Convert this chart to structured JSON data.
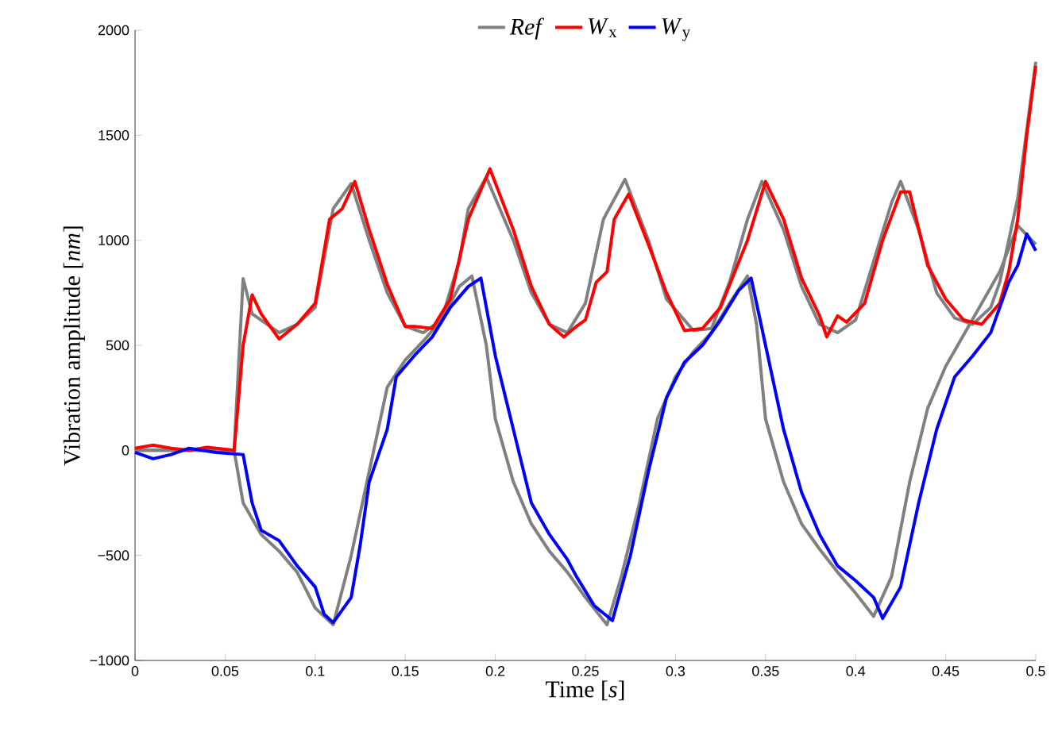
{
  "chart_data": {
    "type": "line",
    "xlabel": "Time [*s*]",
    "ylabel": "Vibration amplitude [*nm*]",
    "xlim": [
      0,
      0.5
    ],
    "ylim": [
      -1000,
      2000
    ],
    "xticks": [
      0,
      0.05,
      0.1,
      0.15,
      0.2,
      0.25,
      0.3,
      0.35,
      0.4,
      0.45,
      0.5
    ],
    "yticks": [
      {
        "value": -1000,
        "label": "−1000"
      },
      {
        "value": -500,
        "label": "−500"
      },
      0,
      500,
      1000,
      1500,
      2000
    ],
    "legend": "top",
    "grid": false,
    "marker": "none",
    "line_style": "solid",
    "series": [
      {
        "name": "*Ref*",
        "color": "#808080",
        "x": [
          0,
          0.02,
          0.04,
          0.055,
          0.06,
          0.065,
          0.08,
          0.09,
          0.1,
          0.11,
          0.12,
          0.13,
          0.14,
          0.15,
          0.16,
          0.17,
          0.18,
          0.185,
          0.195,
          0.21,
          0.22,
          0.23,
          0.24,
          0.25,
          0.26,
          0.272,
          0.285,
          0.295,
          0.31,
          0.32,
          0.33,
          0.34,
          0.348,
          0.36,
          0.37,
          0.38,
          0.39,
          0.4,
          0.41,
          0.42,
          0.425,
          0.435,
          0.445,
          0.455,
          0.465,
          0.475,
          0.48,
          0.49,
          0.5
        ],
        "values": [
          0,
          0,
          0,
          0,
          817,
          650,
          560,
          600,
          680,
          1150,
          1270,
          1000,
          750,
          590,
          560,
          620,
          900,
          1150,
          1300,
          1000,
          750,
          600,
          560,
          700,
          1100,
          1290,
          1000,
          720,
          570,
          580,
          800,
          1100,
          1280,
          1050,
          780,
          600,
          560,
          620,
          900,
          1180,
          1280,
          1050,
          750,
          630,
          600,
          680,
          800,
          1200,
          1850
        ]
      },
      {
        "color": "#808080",
        "x": [
          0,
          0.02,
          0.04,
          0.055,
          0.06,
          0.07,
          0.08,
          0.09,
          0.1,
          0.11,
          0.12,
          0.13,
          0.14,
          0.15,
          0.16,
          0.17,
          0.18,
          0.187,
          0.195,
          0.2,
          0.21,
          0.22,
          0.23,
          0.24,
          0.25,
          0.262,
          0.27,
          0.28,
          0.29,
          0.3,
          0.31,
          0.32,
          0.33,
          0.34,
          0.345,
          0.35,
          0.36,
          0.37,
          0.38,
          0.39,
          0.4,
          0.41,
          0.42,
          0.43,
          0.44,
          0.45,
          0.46,
          0.47,
          0.48,
          0.49,
          0.5
        ],
        "values": [
          0,
          0,
          0,
          0,
          -250,
          -400,
          -480,
          -580,
          -750,
          -830,
          -500,
          -100,
          300,
          430,
          520,
          620,
          780,
          830,
          500,
          150,
          -150,
          -350,
          -480,
          -580,
          -700,
          -830,
          -600,
          -250,
          150,
          350,
          470,
          560,
          700,
          830,
          600,
          150,
          -150,
          -350,
          -470,
          -580,
          -680,
          -790,
          -600,
          -150,
          200,
          400,
          550,
          700,
          850,
          1070,
          980
        ]
      },
      {
        "name": "*W*$_{x}$",
        "color": "#ff0000",
        "x": [
          0,
          0.01,
          0.02,
          0.03,
          0.04,
          0.055,
          0.06,
          0.065,
          0.07,
          0.08,
          0.09,
          0.1,
          0.108,
          0.115,
          0.122,
          0.13,
          0.14,
          0.15,
          0.155,
          0.165,
          0.175,
          0.185,
          0.197,
          0.21,
          0.22,
          0.23,
          0.238,
          0.245,
          0.25,
          0.256,
          0.262,
          0.266,
          0.274,
          0.285,
          0.295,
          0.305,
          0.315,
          0.325,
          0.34,
          0.35,
          0.36,
          0.37,
          0.38,
          0.384,
          0.39,
          0.395,
          0.405,
          0.415,
          0.425,
          0.43,
          0.44,
          0.45,
          0.46,
          0.47,
          0.48,
          0.485,
          0.49,
          0.495,
          0.5
        ],
        "values": [
          10,
          25,
          10,
          0,
          15,
          0,
          500,
          740,
          650,
          530,
          600,
          700,
          1100,
          1150,
          1280,
          1050,
          790,
          590,
          590,
          580,
          720,
          1100,
          1340,
          1050,
          780,
          600,
          540,
          590,
          620,
          800,
          850,
          1100,
          1220,
          980,
          750,
          570,
          580,
          680,
          1000,
          1280,
          1100,
          820,
          640,
          540,
          640,
          610,
          700,
          1000,
          1230,
          1230,
          880,
          720,
          620,
          600,
          700,
          850,
          1100,
          1500,
          1830
        ]
      },
      {
        "name": "*W*$_{y}$",
        "color": "#0000ff",
        "x": [
          0,
          0.01,
          0.02,
          0.03,
          0.045,
          0.06,
          0.065,
          0.07,
          0.08,
          0.09,
          0.1,
          0.105,
          0.11,
          0.12,
          0.125,
          0.13,
          0.14,
          0.145,
          0.155,
          0.165,
          0.175,
          0.185,
          0.192,
          0.2,
          0.21,
          0.22,
          0.23,
          0.24,
          0.245,
          0.255,
          0.265,
          0.275,
          0.285,
          0.295,
          0.305,
          0.315,
          0.325,
          0.335,
          0.342,
          0.35,
          0.36,
          0.37,
          0.38,
          0.39,
          0.4,
          0.41,
          0.415,
          0.425,
          0.435,
          0.445,
          0.455,
          0.465,
          0.475,
          0.485,
          0.49,
          0.495,
          0.5
        ],
        "values": [
          -10,
          -40,
          -20,
          10,
          -10,
          -20,
          -250,
          -380,
          -430,
          -550,
          -650,
          -780,
          -820,
          -700,
          -450,
          -150,
          100,
          350,
          450,
          540,
          680,
          780,
          820,
          450,
          100,
          -250,
          -400,
          -520,
          -600,
          -740,
          -810,
          -500,
          -100,
          250,
          420,
          500,
          620,
          760,
          820,
          500,
          100,
          -200,
          -400,
          -550,
          -620,
          -700,
          -800,
          -650,
          -250,
          100,
          350,
          450,
          560,
          800,
          880,
          1030,
          950
        ]
      }
    ]
  }
}
